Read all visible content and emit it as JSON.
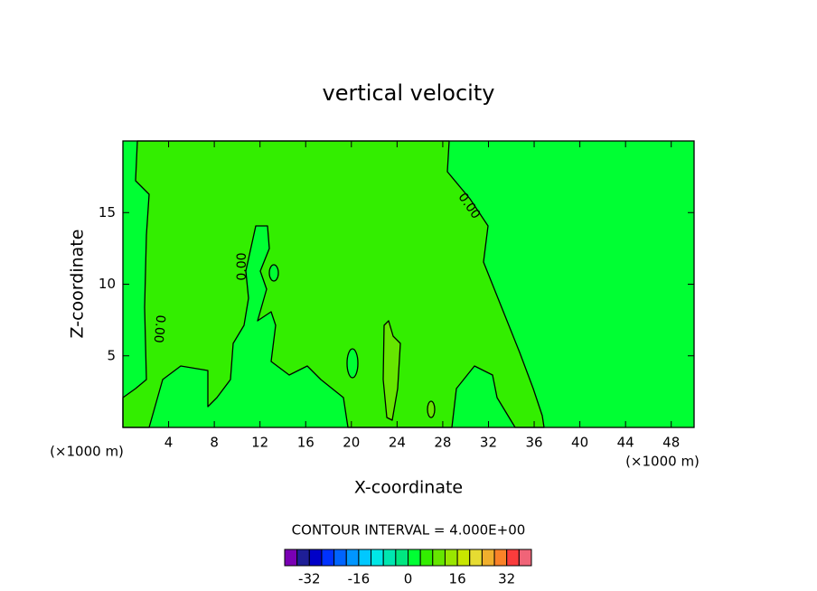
{
  "chart_data": {
    "type": "contour",
    "title": "vertical velocity",
    "x_label": "X-coordinate",
    "y_label": "Z-coordinate",
    "x_unit": "(×1000 m)",
    "y_unit": "(×1000 m)",
    "xlim": [
      0,
      50
    ],
    "xticks": [
      4,
      8,
      12,
      16,
      20,
      24,
      28,
      32,
      36,
      40,
      44,
      48
    ],
    "ylim": [
      0,
      20
    ],
    "yticks": [
      5,
      10,
      15
    ],
    "contour_labels": [
      "0.00",
      "0.00",
      "0.00"
    ],
    "contour_interval_label": "CONTOUR INTERVAL = 4.000E+00",
    "colorbar": {
      "lim": [
        -40,
        40
      ],
      "ticks": [
        -32,
        -16,
        0,
        16,
        32
      ],
      "colors": [
        "#7a00b4",
        "#1e1e96",
        "#0000c8",
        "#0032ff",
        "#0064ff",
        "#0096ff",
        "#00c8ff",
        "#00e6e6",
        "#00e6b0",
        "#00e680",
        "#00ff33",
        "#33ee00",
        "#66e600",
        "#99e600",
        "#c8e600",
        "#e6dc32",
        "#f0af2d",
        "#fa8228",
        "#fa3c3c",
        "#f06478"
      ]
    }
  }
}
